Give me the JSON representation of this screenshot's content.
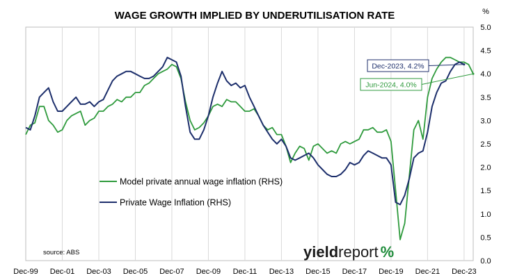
{
  "chart_data": {
    "type": "line",
    "title": "WAGE GROWTH IMPLIED BY UNDERUTILISATION RATE",
    "y_unit": "%",
    "ylim": [
      0,
      5
    ],
    "y_ticks": [
      "0.0",
      "0.5",
      "1.0",
      "1.5",
      "2.0",
      "2.5",
      "3.0",
      "3.5",
      "4.0",
      "4.5",
      "5.0"
    ],
    "x_ticks": [
      "Dec-99",
      "Dec-01",
      "Dec-03",
      "Dec-05",
      "Dec-07",
      "Dec-09",
      "Dec-11",
      "Dec-13",
      "Dec-15",
      "Dec-17",
      "Dec-19",
      "Dec-21",
      "Dec-23"
    ],
    "xlim": [
      "1999-12",
      "2024-06"
    ],
    "grid": "vertical",
    "legend_position": "center-left",
    "series": [
      {
        "name": "Model private annual wage inflation (RHS)",
        "color": "#2e9a3c",
        "points": [
          [
            "1999-12",
            2.7
          ],
          [
            "2000-03",
            2.9
          ],
          [
            "2000-06",
            2.95
          ],
          [
            "2000-09",
            3.3
          ],
          [
            "2000-12",
            3.3
          ],
          [
            "2001-03",
            3.0
          ],
          [
            "2001-06",
            2.9
          ],
          [
            "2001-09",
            2.75
          ],
          [
            "2001-12",
            2.8
          ],
          [
            "2002-03",
            3.0
          ],
          [
            "2002-06",
            3.1
          ],
          [
            "2002-09",
            3.15
          ],
          [
            "2002-12",
            3.2
          ],
          [
            "2003-03",
            2.9
          ],
          [
            "2003-06",
            3.0
          ],
          [
            "2003-09",
            3.05
          ],
          [
            "2003-12",
            3.2
          ],
          [
            "2004-03",
            3.2
          ],
          [
            "2004-06",
            3.3
          ],
          [
            "2004-09",
            3.35
          ],
          [
            "2004-12",
            3.45
          ],
          [
            "2005-03",
            3.4
          ],
          [
            "2005-06",
            3.5
          ],
          [
            "2005-09",
            3.5
          ],
          [
            "2005-12",
            3.6
          ],
          [
            "2006-03",
            3.6
          ],
          [
            "2006-06",
            3.75
          ],
          [
            "2006-09",
            3.8
          ],
          [
            "2006-12",
            3.9
          ],
          [
            "2007-03",
            4.0
          ],
          [
            "2007-06",
            4.05
          ],
          [
            "2007-09",
            4.1
          ],
          [
            "2007-12",
            4.2
          ],
          [
            "2008-03",
            4.15
          ],
          [
            "2008-06",
            3.9
          ],
          [
            "2008-09",
            3.4
          ],
          [
            "2008-12",
            3.0
          ],
          [
            "2009-03",
            2.8
          ],
          [
            "2009-06",
            2.85
          ],
          [
            "2009-09",
            2.95
          ],
          [
            "2009-12",
            3.1
          ],
          [
            "2010-03",
            3.3
          ],
          [
            "2010-06",
            3.35
          ],
          [
            "2010-09",
            3.3
          ],
          [
            "2010-12",
            3.45
          ],
          [
            "2011-03",
            3.4
          ],
          [
            "2011-06",
            3.4
          ],
          [
            "2011-09",
            3.3
          ],
          [
            "2011-12",
            3.2
          ],
          [
            "2012-03",
            3.2
          ],
          [
            "2012-06",
            3.25
          ],
          [
            "2012-09",
            3.1
          ],
          [
            "2012-12",
            2.9
          ],
          [
            "2013-03",
            2.8
          ],
          [
            "2013-06",
            2.85
          ],
          [
            "2013-09",
            2.7
          ],
          [
            "2013-12",
            2.7
          ],
          [
            "2014-03",
            2.45
          ],
          [
            "2014-06",
            2.1
          ],
          [
            "2014-09",
            2.3
          ],
          [
            "2014-12",
            2.45
          ],
          [
            "2015-03",
            2.4
          ],
          [
            "2015-06",
            2.15
          ],
          [
            "2015-09",
            2.45
          ],
          [
            "2015-12",
            2.5
          ],
          [
            "2016-03",
            2.4
          ],
          [
            "2016-06",
            2.3
          ],
          [
            "2016-09",
            2.35
          ],
          [
            "2016-12",
            2.3
          ],
          [
            "2017-03",
            2.5
          ],
          [
            "2017-06",
            2.55
          ],
          [
            "2017-09",
            2.5
          ],
          [
            "2017-12",
            2.55
          ],
          [
            "2018-03",
            2.6
          ],
          [
            "2018-06",
            2.8
          ],
          [
            "2018-09",
            2.8
          ],
          [
            "2018-12",
            2.85
          ],
          [
            "2019-03",
            2.75
          ],
          [
            "2019-06",
            2.75
          ],
          [
            "2019-09",
            2.8
          ],
          [
            "2019-12",
            2.55
          ],
          [
            "2020-03",
            1.5
          ],
          [
            "2020-06",
            0.45
          ],
          [
            "2020-09",
            0.8
          ],
          [
            "2020-12",
            1.8
          ],
          [
            "2021-03",
            2.8
          ],
          [
            "2021-06",
            3.0
          ],
          [
            "2021-09",
            2.6
          ],
          [
            "2021-12",
            3.5
          ],
          [
            "2022-03",
            3.9
          ],
          [
            "2022-06",
            4.1
          ],
          [
            "2022-09",
            4.25
          ],
          [
            "2022-12",
            4.35
          ],
          [
            "2023-03",
            4.35
          ],
          [
            "2023-06",
            4.3
          ],
          [
            "2023-09",
            4.25
          ],
          [
            "2023-12",
            4.25
          ],
          [
            "2024-03",
            4.2
          ],
          [
            "2024-06",
            4.0
          ]
        ]
      },
      {
        "name": "Private Wage Inflation (RHS)",
        "color": "#1c2e6b",
        "points": [
          [
            "1999-12",
            2.85
          ],
          [
            "2000-03",
            2.8
          ],
          [
            "2000-06",
            3.1
          ],
          [
            "2000-09",
            3.5
          ],
          [
            "2000-12",
            3.6
          ],
          [
            "2001-03",
            3.7
          ],
          [
            "2001-06",
            3.4
          ],
          [
            "2001-09",
            3.2
          ],
          [
            "2001-12",
            3.2
          ],
          [
            "2002-03",
            3.3
          ],
          [
            "2002-06",
            3.4
          ],
          [
            "2002-09",
            3.5
          ],
          [
            "2002-12",
            3.35
          ],
          [
            "2003-03",
            3.35
          ],
          [
            "2003-06",
            3.4
          ],
          [
            "2003-09",
            3.3
          ],
          [
            "2003-12",
            3.4
          ],
          [
            "2004-03",
            3.45
          ],
          [
            "2004-06",
            3.65
          ],
          [
            "2004-09",
            3.85
          ],
          [
            "2004-12",
            3.95
          ],
          [
            "2005-03",
            4.0
          ],
          [
            "2005-06",
            4.05
          ],
          [
            "2005-09",
            4.05
          ],
          [
            "2005-12",
            4.0
          ],
          [
            "2006-03",
            3.95
          ],
          [
            "2006-06",
            3.9
          ],
          [
            "2006-09",
            3.9
          ],
          [
            "2006-12",
            3.95
          ],
          [
            "2007-03",
            4.05
          ],
          [
            "2007-06",
            4.15
          ],
          [
            "2007-09",
            4.35
          ],
          [
            "2007-12",
            4.3
          ],
          [
            "2008-03",
            4.25
          ],
          [
            "2008-06",
            3.95
          ],
          [
            "2008-09",
            3.3
          ],
          [
            "2008-12",
            2.75
          ],
          [
            "2009-03",
            2.6
          ],
          [
            "2009-06",
            2.6
          ],
          [
            "2009-09",
            2.8
          ],
          [
            "2009-12",
            3.1
          ],
          [
            "2010-03",
            3.5
          ],
          [
            "2010-06",
            3.8
          ],
          [
            "2010-09",
            4.05
          ],
          [
            "2010-12",
            3.85
          ],
          [
            "2011-03",
            3.75
          ],
          [
            "2011-06",
            3.8
          ],
          [
            "2011-09",
            3.7
          ],
          [
            "2011-12",
            3.75
          ],
          [
            "2012-03",
            3.5
          ],
          [
            "2012-06",
            3.3
          ],
          [
            "2012-09",
            3.1
          ],
          [
            "2012-12",
            2.9
          ],
          [
            "2013-03",
            2.75
          ],
          [
            "2013-06",
            2.6
          ],
          [
            "2013-09",
            2.5
          ],
          [
            "2013-12",
            2.6
          ],
          [
            "2014-03",
            2.45
          ],
          [
            "2014-06",
            2.2
          ],
          [
            "2014-09",
            2.15
          ],
          [
            "2014-12",
            2.2
          ],
          [
            "2015-03",
            2.25
          ],
          [
            "2015-06",
            2.3
          ],
          [
            "2015-09",
            2.2
          ],
          [
            "2015-12",
            2.05
          ],
          [
            "2016-03",
            1.95
          ],
          [
            "2016-06",
            1.85
          ],
          [
            "2016-09",
            1.8
          ],
          [
            "2016-12",
            1.8
          ],
          [
            "2017-03",
            1.85
          ],
          [
            "2017-06",
            1.95
          ],
          [
            "2017-09",
            2.1
          ],
          [
            "2017-12",
            2.05
          ],
          [
            "2018-03",
            2.1
          ],
          [
            "2018-06",
            2.25
          ],
          [
            "2018-09",
            2.35
          ],
          [
            "2018-12",
            2.3
          ],
          [
            "2019-03",
            2.25
          ],
          [
            "2019-06",
            2.2
          ],
          [
            "2019-09",
            2.2
          ],
          [
            "2019-12",
            2.05
          ],
          [
            "2020-03",
            1.25
          ],
          [
            "2020-06",
            1.2
          ],
          [
            "2020-09",
            1.4
          ],
          [
            "2020-12",
            1.75
          ],
          [
            "2021-03",
            2.2
          ],
          [
            "2021-06",
            2.3
          ],
          [
            "2021-09",
            2.35
          ],
          [
            "2021-12",
            2.75
          ],
          [
            "2022-03",
            3.3
          ],
          [
            "2022-06",
            3.6
          ],
          [
            "2022-09",
            3.8
          ],
          [
            "2022-12",
            3.85
          ],
          [
            "2023-03",
            4.05
          ],
          [
            "2023-06",
            4.2
          ],
          [
            "2023-09",
            4.25
          ],
          [
            "2023-12",
            4.2
          ]
        ]
      }
    ],
    "annotations": [
      {
        "text": "Dec-2023, 4.2%",
        "series": 1,
        "x": "2023-12",
        "y": 4.2,
        "color": "#1c2e6b"
      },
      {
        "text": "Jun-2024, 4.0%",
        "series": 0,
        "x": "2024-06",
        "y": 4.0,
        "color": "#2e9a3c"
      }
    ],
    "source": "source: ABS",
    "logo": "yieldreport%"
  }
}
